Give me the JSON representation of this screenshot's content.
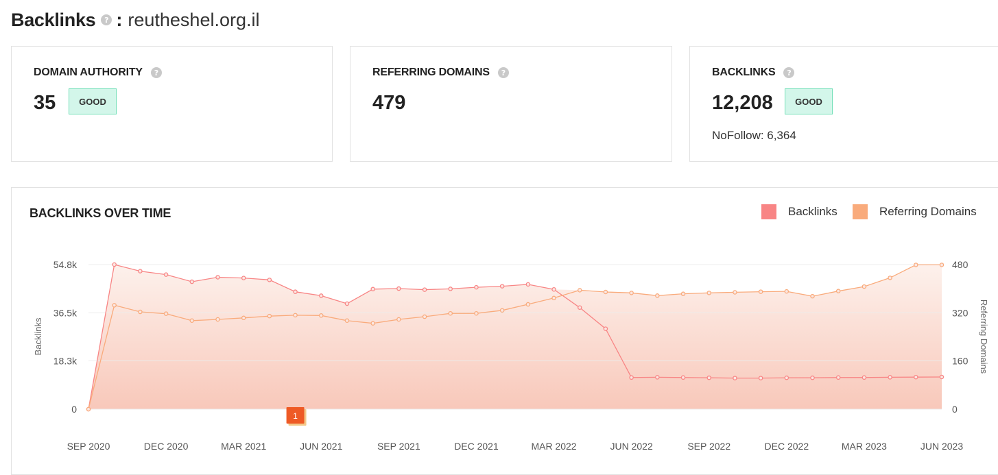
{
  "header": {
    "title": "Backlinks",
    "separator": ":",
    "domain": "reutheshel.org.il"
  },
  "cards": [
    {
      "label": "DOMAIN AUTHORITY",
      "value": "35",
      "badge": "GOOD"
    },
    {
      "label": "REFERRING DOMAINS",
      "value": "479"
    },
    {
      "label": "BACKLINKS",
      "value": "12,208",
      "badge": "GOOD",
      "nofollow": "NoFollow: 6,364"
    }
  ],
  "help_icon": "question-mark-icon",
  "colors": {
    "backlinks": "#f88585",
    "referring_domains": "#f9ab7c",
    "badge_bg": "#d3f6ea",
    "badge_border": "#74dfb8",
    "marker": "#ee5a25"
  },
  "chart_data": {
    "type": "line",
    "title": "BACKLINKS OVER TIME",
    "x": [
      "2020-09",
      "2020-10",
      "2020-11",
      "2020-12",
      "2021-01",
      "2021-02",
      "2021-03",
      "2021-04",
      "2021-05",
      "2021-06",
      "2021-07",
      "2021-08",
      "2021-09",
      "2021-10",
      "2021-11",
      "2021-12",
      "2022-01",
      "2022-02",
      "2022-03",
      "2022-04",
      "2022-05",
      "2022-06",
      "2022-07",
      "2022-08",
      "2022-09",
      "2022-10",
      "2022-11",
      "2022-12",
      "2023-01",
      "2023-02",
      "2023-03",
      "2023-04",
      "2023-05",
      "2023-06"
    ],
    "x_tick_labels": [
      "SEP 2020",
      "DEC 2020",
      "MAR 2021",
      "JUN 2021",
      "SEP 2021",
      "DEC 2021",
      "MAR 2022",
      "JUN 2022",
      "SEP 2022",
      "DEC 2022",
      "MAR 2023",
      "JUN 2023"
    ],
    "series": [
      {
        "name": "Backlinks",
        "axis": "left",
        "values": [
          0,
          54800,
          52300,
          51000,
          48300,
          50000,
          49700,
          49000,
          44500,
          43000,
          40000,
          45500,
          45700,
          45300,
          45600,
          46200,
          46600,
          47300,
          45400,
          38500,
          30500,
          12000,
          12100,
          12000,
          11900,
          11800,
          11800,
          11900,
          11900,
          12000,
          12000,
          12100,
          12150,
          12208
        ]
      },
      {
        "name": "Referring Domains",
        "axis": "right",
        "values": [
          0,
          345,
          323,
          317,
          294,
          298,
          303,
          309,
          312,
          311,
          294,
          285,
          298,
          307,
          318,
          318,
          328,
          348,
          369,
          395,
          389,
          386,
          377,
          383,
          386,
          388,
          390,
          391,
          375,
          392,
          407,
          436,
          479,
          479
        ]
      }
    ],
    "y_left": {
      "label": "Backlinks",
      "ticks": [
        "0",
        "18.3k",
        "36.5k",
        "54.8k"
      ],
      "tick_values": [
        0,
        18300,
        36500,
        54800
      ],
      "range": [
        0,
        54800
      ]
    },
    "y_right": {
      "label": "Referring Domains",
      "ticks": [
        "0",
        "160",
        "320",
        "480"
      ],
      "tick_values": [
        0,
        160,
        320,
        480
      ],
      "range": [
        0,
        480
      ]
    },
    "legend": {
      "position": "top-right",
      "entries": [
        "Backlinks",
        "Referring Domains"
      ]
    },
    "grid": true,
    "annotations": [
      {
        "text": "1",
        "x": "2021-05"
      }
    ]
  }
}
